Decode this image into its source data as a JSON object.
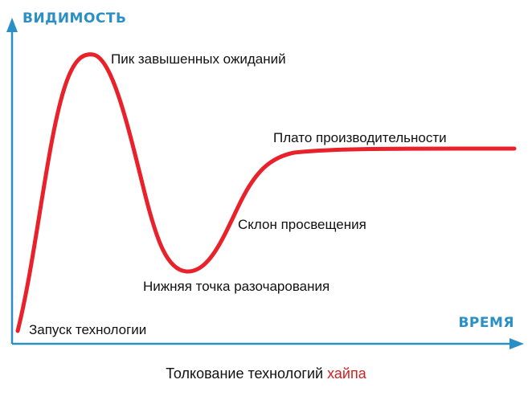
{
  "axes": {
    "y_label": "ВИДИМОСТЬ",
    "x_label": "ВРЕМЯ"
  },
  "phases": {
    "trigger": "Запуск технологии",
    "peak": "Пик завышенных ожиданий",
    "trough": "Нижняя точка разочарования",
    "slope": "Склон просвещения",
    "plateau": "Плато производительности"
  },
  "caption": {
    "main": "Толкование технологий",
    "accent": "хайпа"
  },
  "colors": {
    "axis": "#2a8fc4",
    "curve": "#e8212b",
    "text": "#111111",
    "accent": "#d11f1f"
  }
}
